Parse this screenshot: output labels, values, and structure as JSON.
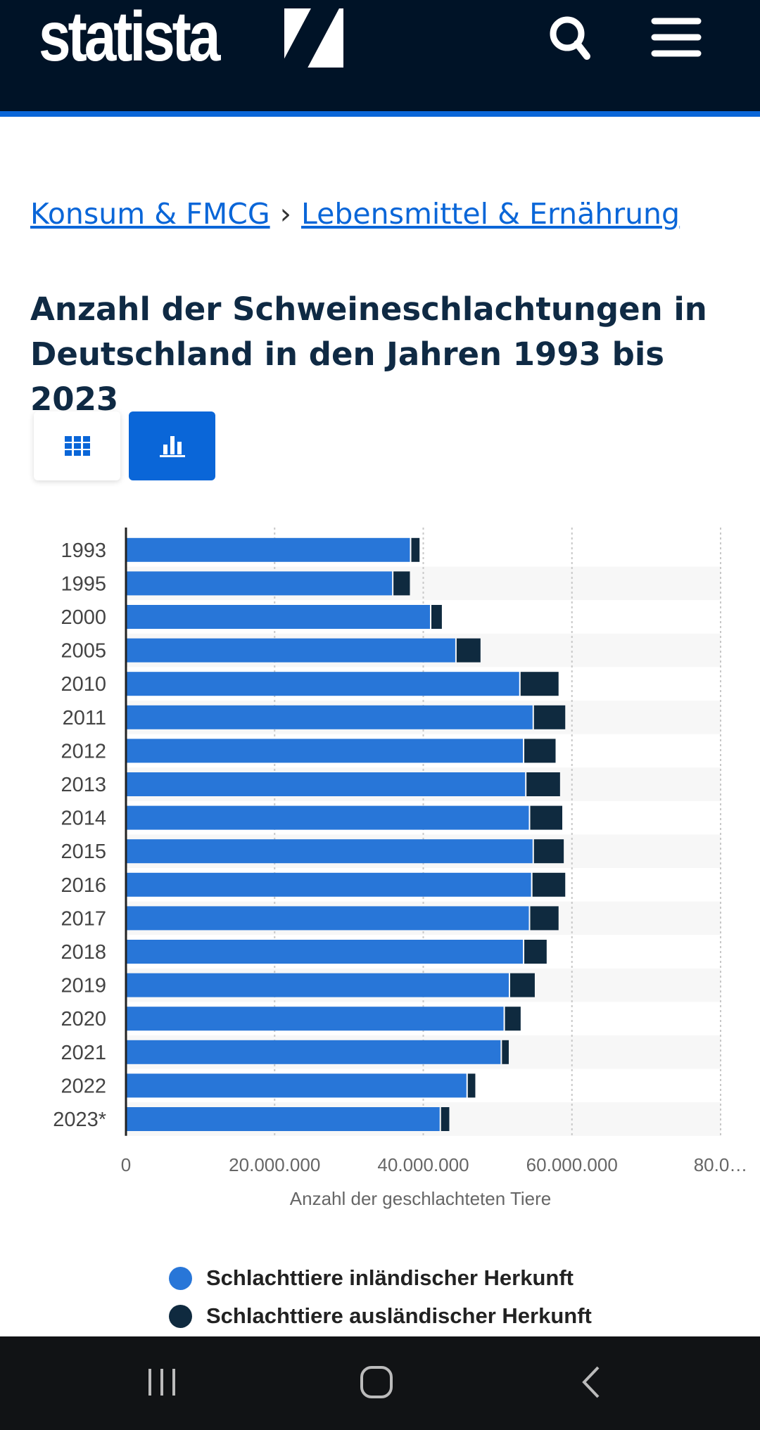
{
  "header": {
    "logo": "statista",
    "search_icon": "search-icon",
    "menu_icon": "hamburger-menu-icon"
  },
  "breadcrumb": {
    "items": [
      "Konsum & FMCG",
      "Lebensmittel & Ernährung"
    ],
    "separator": "›"
  },
  "page_title": "Anzahl der Schweineschlachtungen in Deutschland in den Jahren 1993 bis 2023",
  "view_toggle": {
    "table_icon": "grid-icon",
    "chart_icon": "bar-chart-icon",
    "active": "chart"
  },
  "colors": {
    "domestic": "#2876d8",
    "foreign": "#0f2a3f",
    "header_bg": "#001327",
    "accent": "#0a66d8"
  },
  "chart_data": {
    "type": "bar",
    "orientation": "horizontal",
    "stacked": true,
    "categories": [
      "1993",
      "1995",
      "2000",
      "2005",
      "2010",
      "2011",
      "2012",
      "2013",
      "2014",
      "2015",
      "2016",
      "2017",
      "2018",
      "2019",
      "2020",
      "2021",
      "2022",
      "2023*"
    ],
    "series": [
      {
        "name": "Schlachttiere inländischer Herkunft",
        "values": [
          38.2,
          35.8,
          40.9,
          44.3,
          52.9,
          54.7,
          53.4,
          53.7,
          54.2,
          54.7,
          54.5,
          54.2,
          53.4,
          51.5,
          50.8,
          50.4,
          45.8,
          42.2
        ]
      },
      {
        "name": "Schlachttiere ausländischer Herkunft",
        "values": [
          1.3,
          2.4,
          1.6,
          3.4,
          5.3,
          4.4,
          4.4,
          4.7,
          4.5,
          4.2,
          4.6,
          4.0,
          3.2,
          3.5,
          2.3,
          1.1,
          1.2,
          1.3
        ]
      }
    ],
    "value_unit_multiplier": 1000000,
    "xlim": [
      0,
      80000000
    ],
    "x_ticks": [
      "0",
      "20.000.000",
      "40.000.000",
      "60.000.000",
      "80.0…"
    ],
    "xlabel": "Anzahl der geschlachteten Tiere",
    "grid": true,
    "legend_position": "bottom"
  },
  "navbar": {
    "recent_icon": "recent-apps-icon",
    "home_icon": "home-icon",
    "back_icon": "back-icon"
  }
}
